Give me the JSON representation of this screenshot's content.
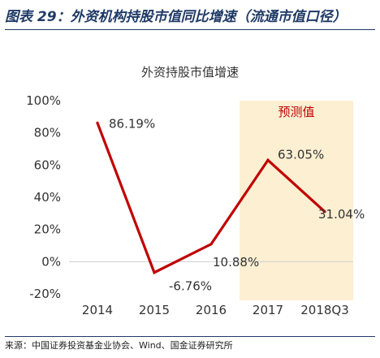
{
  "figure": {
    "title": "图表 29：外资机构持股市值同比增速（流通市值口径）",
    "source": "来源：中国证券投资基金业协会、Wind、国金证券研究所"
  },
  "chart_data": {
    "type": "line",
    "title": "外资持股市值增速",
    "categories": [
      "2014",
      "2015",
      "2016",
      "2017",
      "2018Q3"
    ],
    "series": [
      {
        "values": [
          86.19,
          -6.76,
          10.88,
          63.05,
          31.04
        ],
        "labels": [
          "86.19%",
          "-6.76%",
          "10.88%",
          "63.05%",
          "31.04%"
        ],
        "color": "#c00000"
      }
    ],
    "ylim": [
      -20,
      100
    ],
    "yticks": [
      "-20%",
      "0%",
      "20%",
      "40%",
      "60%",
      "80%",
      "100%"
    ],
    "ytick_values": [
      -20,
      0,
      20,
      40,
      60,
      80,
      100
    ],
    "grid": false,
    "forecast": {
      "label": "预测值",
      "categories": [
        "2017",
        "2018Q3"
      ],
      "fill": "#fcefd2",
      "label_color": "#c00000"
    },
    "colors": {
      "line": "#c00000",
      "axis_text": "#333333",
      "title": "#333333"
    }
  }
}
